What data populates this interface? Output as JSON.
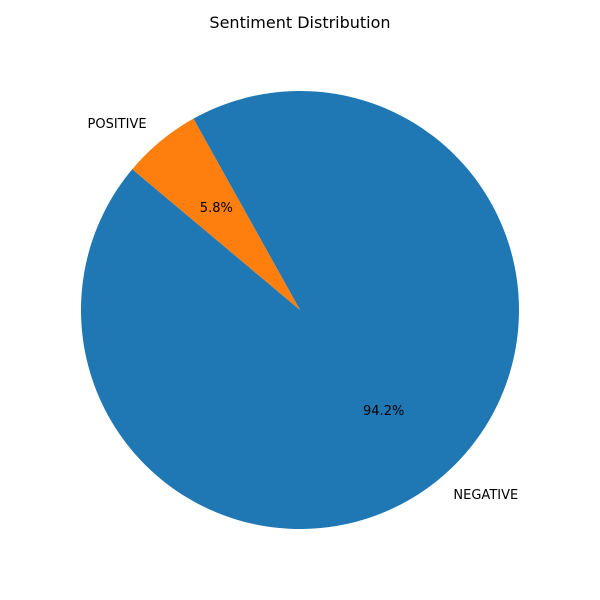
{
  "chart_data": {
    "type": "pie",
    "title": "Sentiment Distribution",
    "slices": [
      {
        "label": "NEGATIVE",
        "value": 94.2,
        "pct_label": "94.2%",
        "color": "#1f77b4"
      },
      {
        "label": "POSITIVE",
        "value": 5.8,
        "pct_label": "5.8%",
        "color": "#ff7f0e"
      }
    ],
    "start_angle_deg": 140,
    "direction": "counterclockwise",
    "legend": "none"
  }
}
